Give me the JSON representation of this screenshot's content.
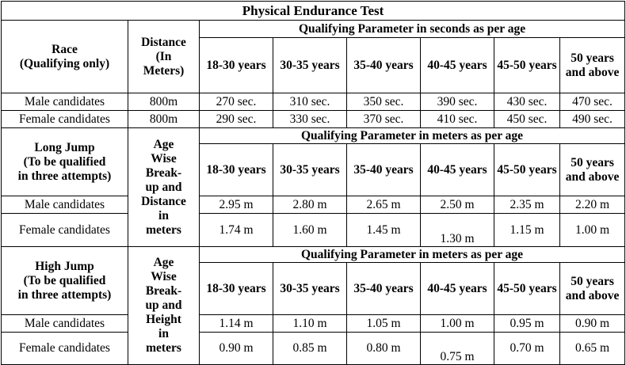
{
  "title": "Physical Endurance Test",
  "race": {
    "label_line1": "Race",
    "label_line2": "(Qualifying only)",
    "distance_header": [
      "Distance",
      "(In",
      "Meters)"
    ],
    "param_header": "Qualifying Parameter in seconds as per age",
    "age_groups": [
      "18-30 years",
      "30-35 years",
      "35-40 years",
      "40-45 years",
      "45-50 years",
      "50 years and above"
    ],
    "rows": [
      {
        "label": "Male candidates",
        "distance": "800m",
        "values": [
          "270 sec.",
          "310 sec.",
          "350 sec.",
          "390 sec.",
          "430 sec.",
          "470 sec."
        ]
      },
      {
        "label": "Female candidates",
        "distance": "800m",
        "values": [
          "290 sec.",
          "330 sec.",
          "370 sec.",
          "410 sec.",
          "450 sec.",
          "490 sec."
        ]
      }
    ]
  },
  "long_jump": {
    "label_lines": [
      "Long Jump",
      "(To be qualified",
      "in three attempts)"
    ],
    "measure_lines": [
      "Age",
      "Wise",
      "Break-",
      "up and",
      "Distance",
      "in",
      "meters"
    ],
    "param_header": "Qualifying Parameter in meters as per age",
    "age_groups": [
      "18-30 years",
      "30-35 years",
      "35-40 years",
      "40-45 years",
      "45-50 years",
      "50 years and above"
    ],
    "rows": [
      {
        "label": "Male candidates",
        "values": [
          "2.95 m",
          "2.80 m",
          "2.65 m",
          "2.50 m",
          "2.35 m",
          "2.20 m"
        ]
      },
      {
        "label": "Female candidates",
        "values": [
          "1.74 m",
          "1.60 m",
          "1.45 m",
          "1.30 m",
          "1.15 m",
          "1.00 m"
        ]
      }
    ]
  },
  "high_jump": {
    "label_lines": [
      "High Jump",
      "(To be qualified",
      "in three attempts)"
    ],
    "measure_lines": [
      "Age",
      "Wise",
      "Break-",
      "up and",
      "Height",
      "in",
      "meters"
    ],
    "param_header": "Qualifying Parameter in meters as per age",
    "age_groups": [
      "18-30 years",
      "30-35 years",
      "35-40 years",
      "40-45 years",
      "45-50 years",
      "50 years and above"
    ],
    "rows": [
      {
        "label": "Male candidates",
        "values": [
          "1.14 m",
          "1.10 m",
          "1.05 m",
          "1.00 m",
          "0.95 m",
          "0.90 m"
        ]
      },
      {
        "label": "Female candidates",
        "values": [
          "0.90 m",
          "0.85 m",
          "0.80 m",
          "0.75 m",
          "0.70 m",
          "0.65 m"
        ]
      }
    ]
  }
}
